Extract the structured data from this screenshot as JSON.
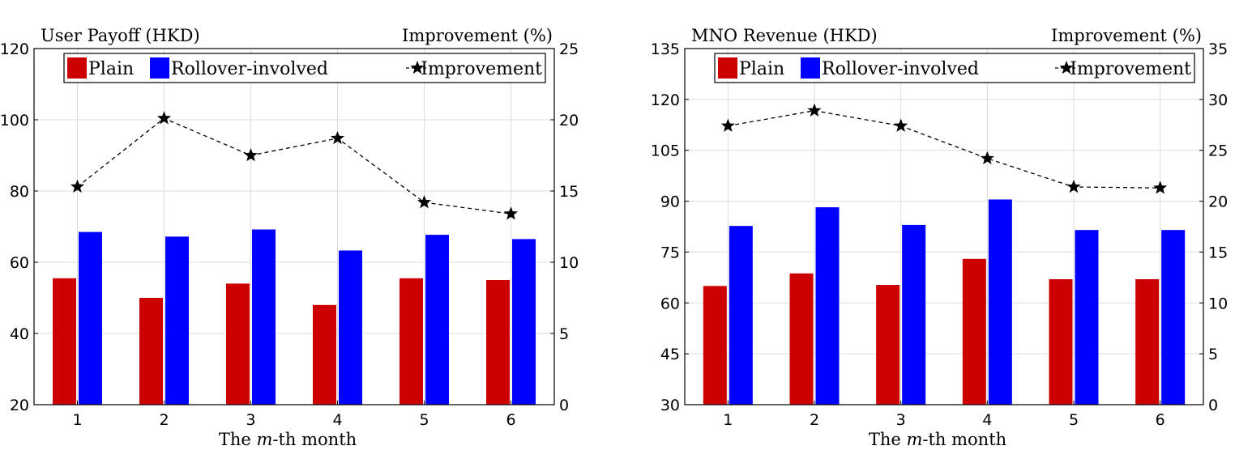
{
  "chart_data": [
    {
      "type": "bar",
      "categories": [
        "1",
        "2",
        "3",
        "4",
        "5",
        "6"
      ],
      "series": [
        {
          "name": "Plain",
          "values": [
            55.5,
            50,
            54,
            48,
            55.5,
            55
          ],
          "color": "#cc0000",
          "axis": "left"
        },
        {
          "name": "Rollover-involved",
          "values": [
            68.5,
            67.2,
            69.2,
            63.3,
            67.7,
            66.5
          ],
          "color": "#0000ff",
          "axis": "left"
        },
        {
          "name": "Improvement",
          "type": "line",
          "marker": "star",
          "line_style": "dashed",
          "values": [
            15.3,
            20.1,
            17.5,
            18.7,
            14.2,
            13.4
          ],
          "color": "#000000",
          "axis": "right"
        }
      ],
      "ylabel": "User Payoff (HKD)",
      "y2label": "Improvement (%)",
      "xlabel_prefix": "The ",
      "xlabel_var": "m",
      "xlabel_suffix": "-th month",
      "ylim": [
        20,
        120
      ],
      "yticks": [
        20,
        40,
        60,
        80,
        100,
        120
      ],
      "y2lim": [
        0,
        25
      ],
      "y2ticks": [
        0,
        5,
        10,
        15,
        20,
        25
      ],
      "grid": true,
      "legend_position": "top"
    },
    {
      "type": "bar",
      "categories": [
        "1",
        "2",
        "3",
        "4",
        "5",
        "6"
      ],
      "series": [
        {
          "name": "Plain",
          "values": [
            65,
            68.7,
            65.3,
            73,
            67,
            67
          ],
          "color": "#cc0000",
          "axis": "left"
        },
        {
          "name": "Rollover-involved",
          "values": [
            82.7,
            88.2,
            83,
            90.5,
            81.5,
            81.5
          ],
          "color": "#0000ff",
          "axis": "left"
        },
        {
          "name": "Improvement",
          "type": "line",
          "marker": "star",
          "line_style": "dashed",
          "values": [
            27.4,
            28.9,
            27.4,
            24.2,
            21.4,
            21.3
          ],
          "color": "#000000",
          "axis": "right"
        }
      ],
      "ylabel": "MNO Revenue (HKD)",
      "y2label": "Improvement (%)",
      "xlabel_prefix": "The ",
      "xlabel_var": "m",
      "xlabel_suffix": "-th month",
      "ylim": [
        30,
        135
      ],
      "yticks": [
        30,
        45,
        60,
        75,
        90,
        105,
        120,
        135
      ],
      "y2lim": [
        0,
        35
      ],
      "y2ticks": [
        0,
        5,
        10,
        15,
        20,
        25,
        30,
        35
      ],
      "grid": true,
      "legend_position": "top"
    }
  ]
}
